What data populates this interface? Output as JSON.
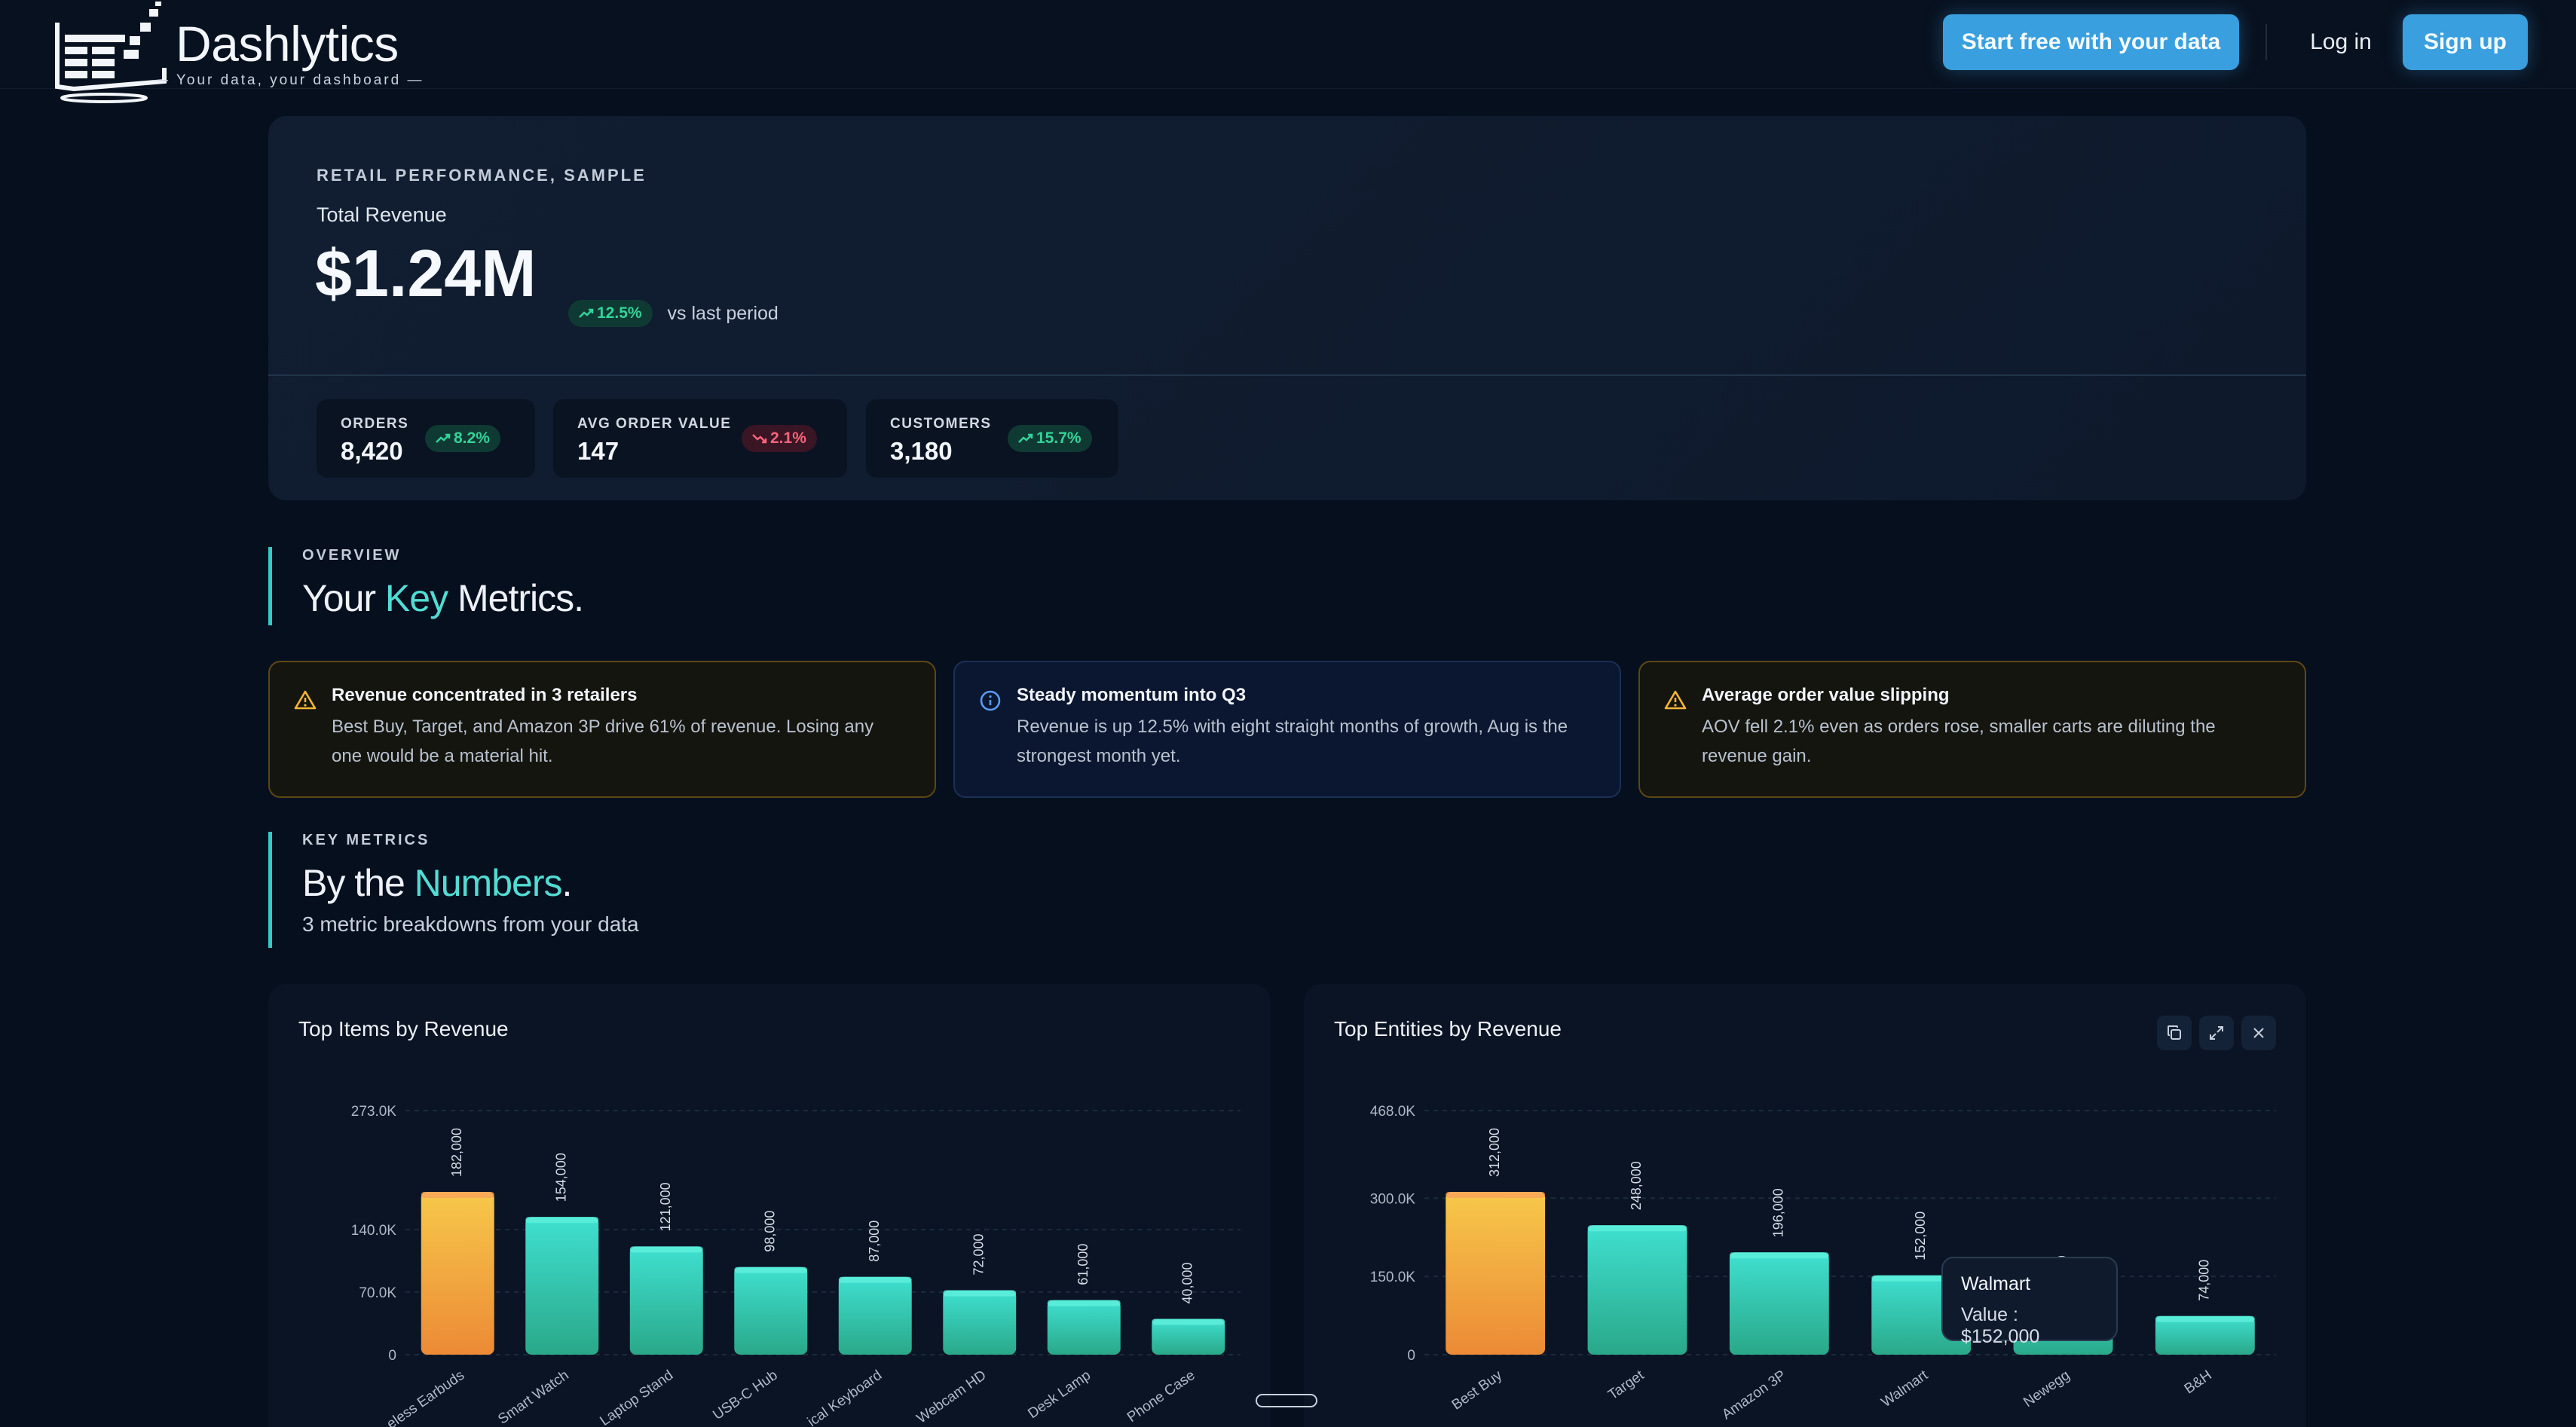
{
  "brand": {
    "name": "Dashlytics",
    "tagline": "— Your data, your dashboard —"
  },
  "nav": {
    "start_label": "Start free with your data",
    "login_label": "Log in",
    "signup_label": "Sign up"
  },
  "hero": {
    "eyebrow": "RETAIL PERFORMANCE, SAMPLE",
    "label": "Total Revenue",
    "value": "$1.24M",
    "change": "12.5%",
    "vs": "vs last period",
    "kpis": [
      {
        "label": "ORDERS",
        "value": "8,420",
        "change": "8.2%",
        "trend": "up"
      },
      {
        "label": "AVG ORDER VALUE",
        "value": "147",
        "change": "2.1%",
        "trend": "down"
      },
      {
        "label": "CUSTOMERS",
        "value": "3,180",
        "change": "15.7%",
        "trend": "up"
      }
    ]
  },
  "overview": {
    "eyebrow": "OVERVIEW",
    "title_pre": "Your ",
    "title_accent": "Key",
    "title_post": " Metrics."
  },
  "insights": [
    {
      "title": "Revenue concentrated in 3 retailers",
      "body": "Best Buy, Target, and Amazon 3P drive 61% of revenue. Losing any one would be a material hit.",
      "kind": "warning"
    },
    {
      "title": "Steady momentum into Q3",
      "body": "Revenue is up 12.5% with eight straight months of growth, Aug is the strongest month yet.",
      "kind": "info"
    },
    {
      "title": "Average order value slipping",
      "body": "AOV fell 2.1% even as orders rose, smaller carts are diluting the revenue gain.",
      "kind": "warning"
    }
  ],
  "key_metrics": {
    "eyebrow": "KEY METRICS",
    "title_pre": "By the ",
    "title_accent": "Numbers",
    "title_post": ".",
    "subtitle": "3 metric breakdowns from your data"
  },
  "colors": {
    "accent": "#52dcd3",
    "primary_button": "#3a9fdf",
    "bar_highlight": "#f0a63a",
    "bar_default": "#2fd3c0",
    "up": "#34d399",
    "down": "#f8637c"
  },
  "chart_data": [
    {
      "type": "bar",
      "title": "Top Items by Revenue",
      "categories": [
        "Wireless Earbuds",
        "Smart Watch",
        "Laptop Stand",
        "USB-C Hub",
        "Mechanical Keyboard",
        "Webcam HD",
        "Desk Lamp",
        "Phone Case"
      ],
      "category_labels": [
        "eless Earbuds",
        "Smart Watch",
        "Laptop Stand",
        "USB-C Hub",
        "ical Keyboard",
        "Webcam HD",
        "Desk Lamp",
        "Phone Case"
      ],
      "values": [
        182000,
        154000,
        121000,
        98000,
        87000,
        72000,
        61000,
        40000
      ],
      "value_labels": [
        "182,000",
        "154,000",
        "121,000",
        "98,000",
        "87,000",
        "72,000",
        "61,000",
        "40,000"
      ],
      "ylim": [
        0,
        273000
      ],
      "yticks": [
        0,
        70000,
        140000,
        273000
      ],
      "ytick_labels": [
        "0",
        "70.0K",
        "140.0K",
        "273.0K"
      ],
      "highlight_index": 0,
      "grid": true
    },
    {
      "type": "bar",
      "title": "Top Entities by Revenue",
      "categories": [
        "Best Buy",
        "Target",
        "Amazon 3P",
        "Walmart",
        "Newegg",
        "B&H"
      ],
      "category_labels": [
        "Best Buy",
        "Target",
        "Amazon 3P",
        "Walmart",
        "Newegg",
        "B&H"
      ],
      "values": [
        312000,
        248000,
        196000,
        152000,
        118000,
        74000
      ],
      "value_labels": [
        "312,000",
        "248,000",
        "196,000",
        "152,000",
        "",
        "74,000"
      ],
      "value_labels_partial": {
        "4": "000"
      },
      "ylim": [
        0,
        468000
      ],
      "yticks": [
        0,
        150000,
        300000,
        468000
      ],
      "ytick_labels": [
        "0",
        "150.0K",
        "300.0K",
        "468.0K"
      ],
      "highlight_index": 0,
      "grid": true,
      "tooltip": {
        "name": "Walmart",
        "value_text": "Value : $152,000"
      }
    }
  ]
}
